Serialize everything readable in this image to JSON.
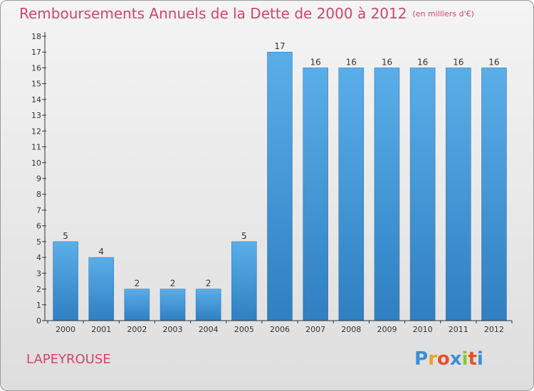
{
  "chart_data": {
    "type": "bar",
    "title": "Remboursements Annuels de la Dette de 2000 à 2012",
    "subtitle": "(en milliers d'€)",
    "categories": [
      "2000",
      "2001",
      "2002",
      "2003",
      "2004",
      "2005",
      "2006",
      "2007",
      "2008",
      "2009",
      "2010",
      "2011",
      "2012"
    ],
    "values": [
      5,
      4,
      2,
      2,
      2,
      5,
      17,
      16,
      16,
      16,
      16,
      16,
      16
    ],
    "ylim": [
      0,
      18
    ],
    "yticks": [
      "0",
      "1",
      "2",
      "3",
      "4",
      "5",
      "6",
      "7",
      "8",
      "9",
      "10",
      "11",
      "12",
      "13",
      "14",
      "15",
      "16",
      "17",
      "18"
    ],
    "xlabel": "",
    "ylabel": "",
    "grid": false,
    "bar_color": "#3d97d9"
  },
  "footer": {
    "town": "LAPEYROUSE",
    "logo_letters": [
      "P",
      "r",
      "o",
      "x",
      "i",
      "t",
      "i"
    ],
    "logo_colors": [
      "#3b8fd6",
      "#f2a11f",
      "#e8512a",
      "#3b8fd6",
      "#8dc33b",
      "#e8512a",
      "#3b8fd6"
    ]
  },
  "colors": {
    "title": "#d1456d",
    "axis": "#333333"
  }
}
